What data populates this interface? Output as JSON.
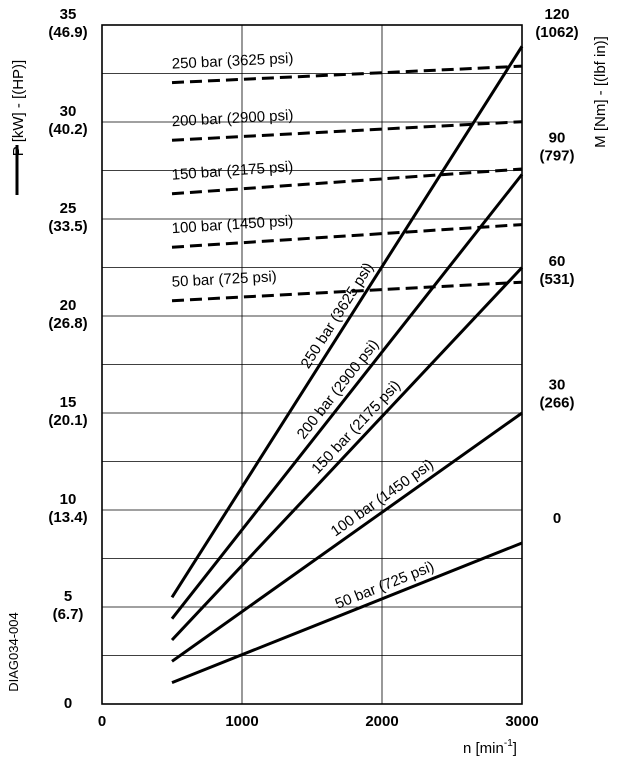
{
  "chart_data": {
    "type": "line",
    "x_axis": {
      "label": "n [min",
      "label_sup": "-1",
      "label_end": "]",
      "range": [
        0,
        3000
      ],
      "ticks": [
        0,
        1000,
        2000,
        3000
      ],
      "tick_labels": [
        "0",
        "1000",
        "2000",
        "3000"
      ]
    },
    "y_axis_left": {
      "label": "P [kW] - [(HP)]",
      "range": [
        0,
        35
      ],
      "ticks": [
        0,
        5,
        10,
        15,
        20,
        25,
        30,
        35
      ],
      "tick_labels": [
        "0",
        "5",
        "10",
        "15",
        "20",
        "25",
        "30",
        "35"
      ],
      "tick_sublabels": [
        "",
        "(6.7)",
        "(13.4)",
        "(20.1)",
        "(26.8)",
        "(33.5)",
        "(40.2)",
        "(46.9)"
      ]
    },
    "y_axis_right": {
      "label": "M [Nm] - [(lbf in)]",
      "range": [
        -45,
        120
      ],
      "ticks": [
        0,
        30,
        60,
        90,
        120
      ],
      "tick_labels": [
        "0",
        "30",
        "60",
        "90",
        "120"
      ],
      "tick_sublabels": [
        "",
        "(266)",
        "(531)",
        "(797)",
        "(1062)"
      ]
    },
    "grid_lines_left": [
      2.5,
      5,
      7.5,
      10,
      12.5,
      15,
      17.5,
      20,
      22.5,
      25,
      27.5,
      30,
      32.5
    ],
    "grid_lines_x": [
      1000,
      2000
    ],
    "power_series": [
      {
        "name": "250 bar (3625 psi)",
        "x": [
          500,
          3000
        ],
        "y": [
          5.5,
          33.9
        ]
      },
      {
        "name": "200 bar (2900 psi)",
        "x": [
          500,
          3000
        ],
        "y": [
          4.4,
          27.3
        ]
      },
      {
        "name": "150 bar (2175 psi)",
        "x": [
          500,
          3000
        ],
        "y": [
          3.3,
          22.5
        ]
      },
      {
        "name": "100 bar (1450 psi)",
        "x": [
          500,
          3000
        ],
        "y": [
          2.2,
          15.0
        ]
      },
      {
        "name": "50 bar (725 psi)",
        "x": [
          500,
          3000
        ],
        "y": [
          1.1,
          8.3
        ]
      }
    ],
    "torque_series": [
      {
        "name": "250 bar (3625 psi)",
        "x": [
          500,
          3000
        ],
        "y": [
          106,
          110
        ]
      },
      {
        "name": "200 bar (2900 psi)",
        "x": [
          500,
          3000
        ],
        "y": [
          92,
          96.5
        ]
      },
      {
        "name": "150 bar (2175 psi)",
        "x": [
          500,
          3000
        ],
        "y": [
          79,
          85
        ]
      },
      {
        "name": "100 bar (1450 psi)",
        "x": [
          500,
          3000
        ],
        "y": [
          66,
          71.5
        ]
      },
      {
        "name": "50 bar (725 psi)",
        "x": [
          500,
          3000
        ],
        "y": [
          53,
          57.5
        ]
      }
    ],
    "drawing_code": "DIAG034-004"
  }
}
